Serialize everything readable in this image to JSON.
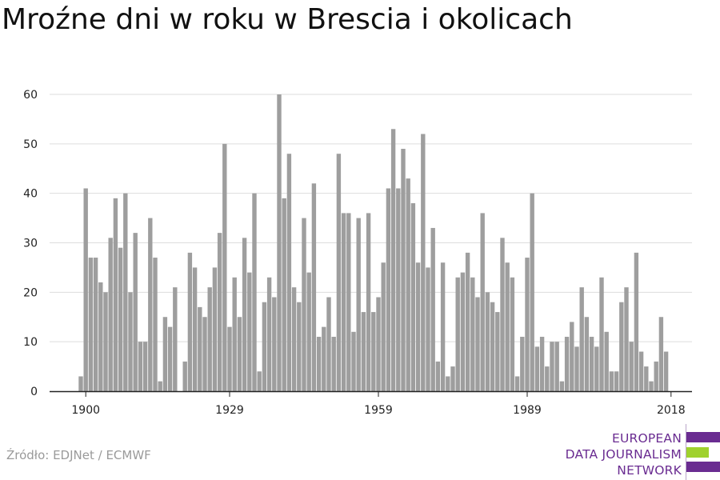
{
  "title": "Mroźne dni w roku w Brescia i okolicach",
  "source": "Źródło: EDJNet / ECMWF",
  "logo": {
    "lines": [
      "EUROPEAN",
      "DATA JOURNALISM",
      "NETWORK"
    ],
    "colors": {
      "purple": "#6a2c91",
      "green": "#9fd12e"
    }
  },
  "chart_data": {
    "type": "bar",
    "title": "Mroźne dni w roku w Brescia i okolicach",
    "xlabel": "",
    "ylabel": "",
    "x_start": 1899,
    "x_end": 2020,
    "x_ticks": [
      1900,
      1929,
      1959,
      1989,
      2018
    ],
    "y_ticks": [
      0,
      10,
      20,
      30,
      40,
      50,
      60
    ],
    "ylim": [
      0,
      60
    ],
    "grid": true,
    "bar_color": "#9e9e9e",
    "values": [
      3,
      41,
      27,
      27,
      22,
      20,
      31,
      39,
      29,
      40,
      20,
      32,
      10,
      10,
      35,
      27,
      2,
      15,
      13,
      21,
      0,
      6,
      28,
      25,
      17,
      15,
      21,
      25,
      32,
      50,
      13,
      23,
      15,
      31,
      24,
      40,
      4,
      18,
      23,
      19,
      60,
      39,
      48,
      21,
      18,
      35,
      24,
      42,
      11,
      13,
      19,
      11,
      48,
      36,
      36,
      12,
      35,
      16,
      36,
      16,
      19,
      26,
      41,
      53,
      41,
      49,
      43,
      38,
      26,
      52,
      25,
      33,
      6,
      26,
      3,
      5,
      23,
      24,
      28,
      23,
      19,
      36,
      20,
      18,
      16,
      31,
      26,
      23,
      3,
      11,
      27,
      40,
      9,
      11,
      5,
      10,
      10,
      2,
      11,
      14,
      9,
      21,
      15,
      11,
      9,
      23,
      12,
      4,
      4,
      18,
      21,
      10,
      28,
      8,
      5,
      2,
      6,
      15,
      8,
      0,
      0,
      0
    ]
  }
}
